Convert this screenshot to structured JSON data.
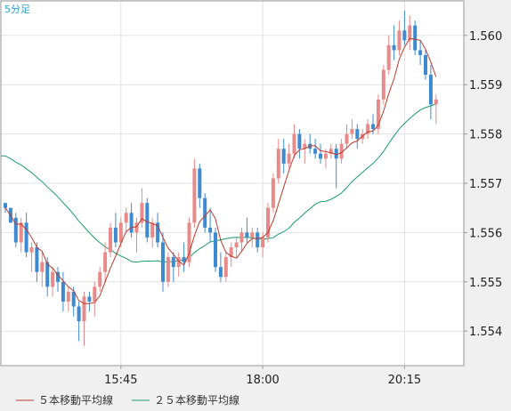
{
  "timeframe_label": "5分足",
  "legend": {
    "ma5_label": "５本移動平均線",
    "ma25_label": "２５本移動平均線"
  },
  "colors": {
    "plot_bg": "#ffffff",
    "page_bg": "#f0f0f0",
    "grid": "#e2e2e2",
    "frame": "#999999",
    "up_candle": "#e88a8a",
    "down_candle": "#3d8ad1",
    "ma5": "#c0392b",
    "ma25": "#1a9e6a",
    "timeframe_text": "#29a3d6"
  },
  "chart_data": {
    "type": "candlestick",
    "title": "5分足",
    "ylim": [
      1.5533,
      1.5607
    ],
    "y_ticks": [
      "1.554",
      "1.555",
      "1.556",
      "1.557",
      "1.558",
      "1.559",
      "1.560"
    ],
    "x_ticks": [
      {
        "label": "15:45",
        "index": 22
      },
      {
        "label": "18:00",
        "index": 49
      },
      {
        "label": "20:15",
        "index": 76
      }
    ],
    "grid": true,
    "legend_position": "bottom",
    "series": [
      {
        "name": "５本移動平均線",
        "color": "#c0392b"
      },
      {
        "name": "２５本移動平均線",
        "color": "#1a9e6a"
      }
    ],
    "candles": [
      [
        1.5566,
        1.5566,
        1.5564,
        1.5565
      ],
      [
        1.5565,
        1.5565,
        1.5562,
        1.5562
      ],
      [
        1.5563,
        1.5564,
        1.5557,
        1.5558
      ],
      [
        1.5558,
        1.5563,
        1.5556,
        1.5562
      ],
      [
        1.5562,
        1.5564,
        1.5555,
        1.5556
      ],
      [
        1.5556,
        1.5558,
        1.5552,
        1.5557
      ],
      [
        1.5557,
        1.5558,
        1.555,
        1.5552
      ],
      [
        1.5552,
        1.5556,
        1.5549,
        1.5554
      ],
      [
        1.5554,
        1.5555,
        1.5547,
        1.5549
      ],
      [
        1.5549,
        1.5553,
        1.5547,
        1.5552
      ],
      [
        1.5552,
        1.5553,
        1.5548,
        1.555
      ],
      [
        1.555,
        1.5552,
        1.5544,
        1.5546
      ],
      [
        1.5546,
        1.5549,
        1.5544,
        1.5548
      ],
      [
        1.5548,
        1.5549,
        1.5543,
        1.5545
      ],
      [
        1.5545,
        1.5546,
        1.5538,
        1.5542
      ],
      [
        1.5542,
        1.5548,
        1.5537,
        1.5547
      ],
      [
        1.5547,
        1.5548,
        1.5544,
        1.5546
      ],
      [
        1.5546,
        1.555,
        1.5543,
        1.5549
      ],
      [
        1.5549,
        1.5553,
        1.5548,
        1.5552
      ],
      [
        1.5552,
        1.5558,
        1.555,
        1.5556
      ],
      [
        1.5556,
        1.5562,
        1.5555,
        1.5561
      ],
      [
        1.5561,
        1.5564,
        1.5557,
        1.5558
      ],
      [
        1.5558,
        1.5563,
        1.5557,
        1.5562
      ],
      [
        1.5562,
        1.5565,
        1.556,
        1.5564
      ],
      [
        1.5564,
        1.5566,
        1.5559,
        1.556
      ],
      [
        1.556,
        1.5563,
        1.5556,
        1.5562
      ],
      [
        1.5562,
        1.5569,
        1.5561,
        1.5566
      ],
      [
        1.5566,
        1.5567,
        1.5558,
        1.5559
      ],
      [
        1.5559,
        1.5563,
        1.5557,
        1.5562
      ],
      [
        1.5562,
        1.5564,
        1.5557,
        1.5558
      ],
      [
        1.5558,
        1.556,
        1.5548,
        1.555
      ],
      [
        1.555,
        1.5556,
        1.5549,
        1.5555
      ],
      [
        1.5555,
        1.5556,
        1.555,
        1.5553
      ],
      [
        1.5553,
        1.5556,
        1.5551,
        1.5555
      ],
      [
        1.5555,
        1.5558,
        1.5552,
        1.5554
      ],
      [
        1.5554,
        1.5563,
        1.5553,
        1.5562
      ],
      [
        1.5562,
        1.5575,
        1.5561,
        1.5573
      ],
      [
        1.5573,
        1.5574,
        1.5565,
        1.5567
      ],
      [
        1.5567,
        1.5568,
        1.556,
        1.5561
      ],
      [
        1.5561,
        1.5565,
        1.5558,
        1.556
      ],
      [
        1.556,
        1.5561,
        1.5552,
        1.5553
      ],
      [
        1.5553,
        1.5556,
        1.555,
        1.5551
      ],
      [
        1.5551,
        1.5556,
        1.555,
        1.5555
      ],
      [
        1.5555,
        1.5558,
        1.5553,
        1.5557
      ],
      [
        1.5557,
        1.5559,
        1.5555,
        1.5558
      ],
      [
        1.5558,
        1.5561,
        1.5556,
        1.556
      ],
      [
        1.556,
        1.5563,
        1.5558,
        1.5559
      ],
      [
        1.5559,
        1.5561,
        1.5557,
        1.556
      ],
      [
        1.556,
        1.5561,
        1.5556,
        1.5557
      ],
      [
        1.5557,
        1.556,
        1.5555,
        1.5559
      ],
      [
        1.5559,
        1.5566,
        1.5558,
        1.5565
      ],
      [
        1.5565,
        1.5572,
        1.5564,
        1.5571
      ],
      [
        1.5571,
        1.5579,
        1.557,
        1.5577
      ],
      [
        1.5577,
        1.5579,
        1.5572,
        1.5574
      ],
      [
        1.5574,
        1.5578,
        1.5573,
        1.5576
      ],
      [
        1.5576,
        1.5582,
        1.5575,
        1.558
      ],
      [
        1.558,
        1.5581,
        1.5575,
        1.5577
      ],
      [
        1.5577,
        1.5579,
        1.5574,
        1.5578
      ],
      [
        1.5578,
        1.558,
        1.5576,
        1.5577
      ],
      [
        1.5577,
        1.5579,
        1.5575,
        1.5576
      ],
      [
        1.5576,
        1.5578,
        1.5574,
        1.5575
      ],
      [
        1.5575,
        1.5577,
        1.5573,
        1.5576
      ],
      [
        1.5576,
        1.5578,
        1.5575,
        1.5577
      ],
      [
        1.5577,
        1.5578,
        1.5569,
        1.5575
      ],
      [
        1.5575,
        1.5579,
        1.5574,
        1.5578
      ],
      [
        1.5578,
        1.5582,
        1.5577,
        1.558
      ],
      [
        1.558,
        1.5583,
        1.5579,
        1.5581
      ],
      [
        1.5581,
        1.5582,
        1.5577,
        1.5579
      ],
      [
        1.5579,
        1.5581,
        1.5578,
        1.558
      ],
      [
        1.558,
        1.5583,
        1.5579,
        1.5582
      ],
      [
        1.5582,
        1.5584,
        1.558,
        1.5581
      ],
      [
        1.5581,
        1.5588,
        1.558,
        1.5587
      ],
      [
        1.5587,
        1.5594,
        1.5586,
        1.5593
      ],
      [
        1.5593,
        1.56,
        1.5592,
        1.5598
      ],
      [
        1.5598,
        1.5602,
        1.5595,
        1.5597
      ],
      [
        1.5597,
        1.5603,
        1.5596,
        1.5601
      ],
      [
        1.5601,
        1.5605,
        1.5598,
        1.5599
      ],
      [
        1.5599,
        1.5604,
        1.5597,
        1.5602
      ],
      [
        1.5602,
        1.5603,
        1.5596,
        1.5597
      ],
      [
        1.5597,
        1.5599,
        1.5594,
        1.5596
      ],
      [
        1.5596,
        1.5597,
        1.5591,
        1.5592
      ],
      [
        1.5592,
        1.5594,
        1.5583,
        1.5586
      ],
      [
        1.5586,
        1.5588,
        1.5582,
        1.5587
      ]
    ]
  }
}
